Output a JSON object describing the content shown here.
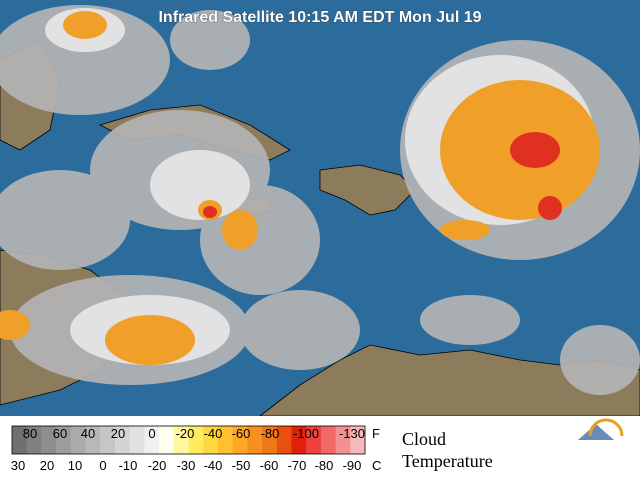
{
  "title": "Infrared Satellite 10:15 AM EDT Mon Jul 19",
  "legend": {
    "fahrenheit_labels": [
      "80",
      "60",
      "40",
      "20",
      "0",
      "-20",
      "-40",
      "-60",
      "-80",
      "-100",
      "-130"
    ],
    "fahrenheit_unit": "F",
    "celsius_labels": [
      "30",
      "20",
      "10",
      "0",
      "-10",
      "-20",
      "-30",
      "-40",
      "-50",
      "-60",
      "-70",
      "-80",
      "-90"
    ],
    "celsius_unit": "C",
    "title_lines": [
      "Cloud",
      "Temperature"
    ]
  }
}
